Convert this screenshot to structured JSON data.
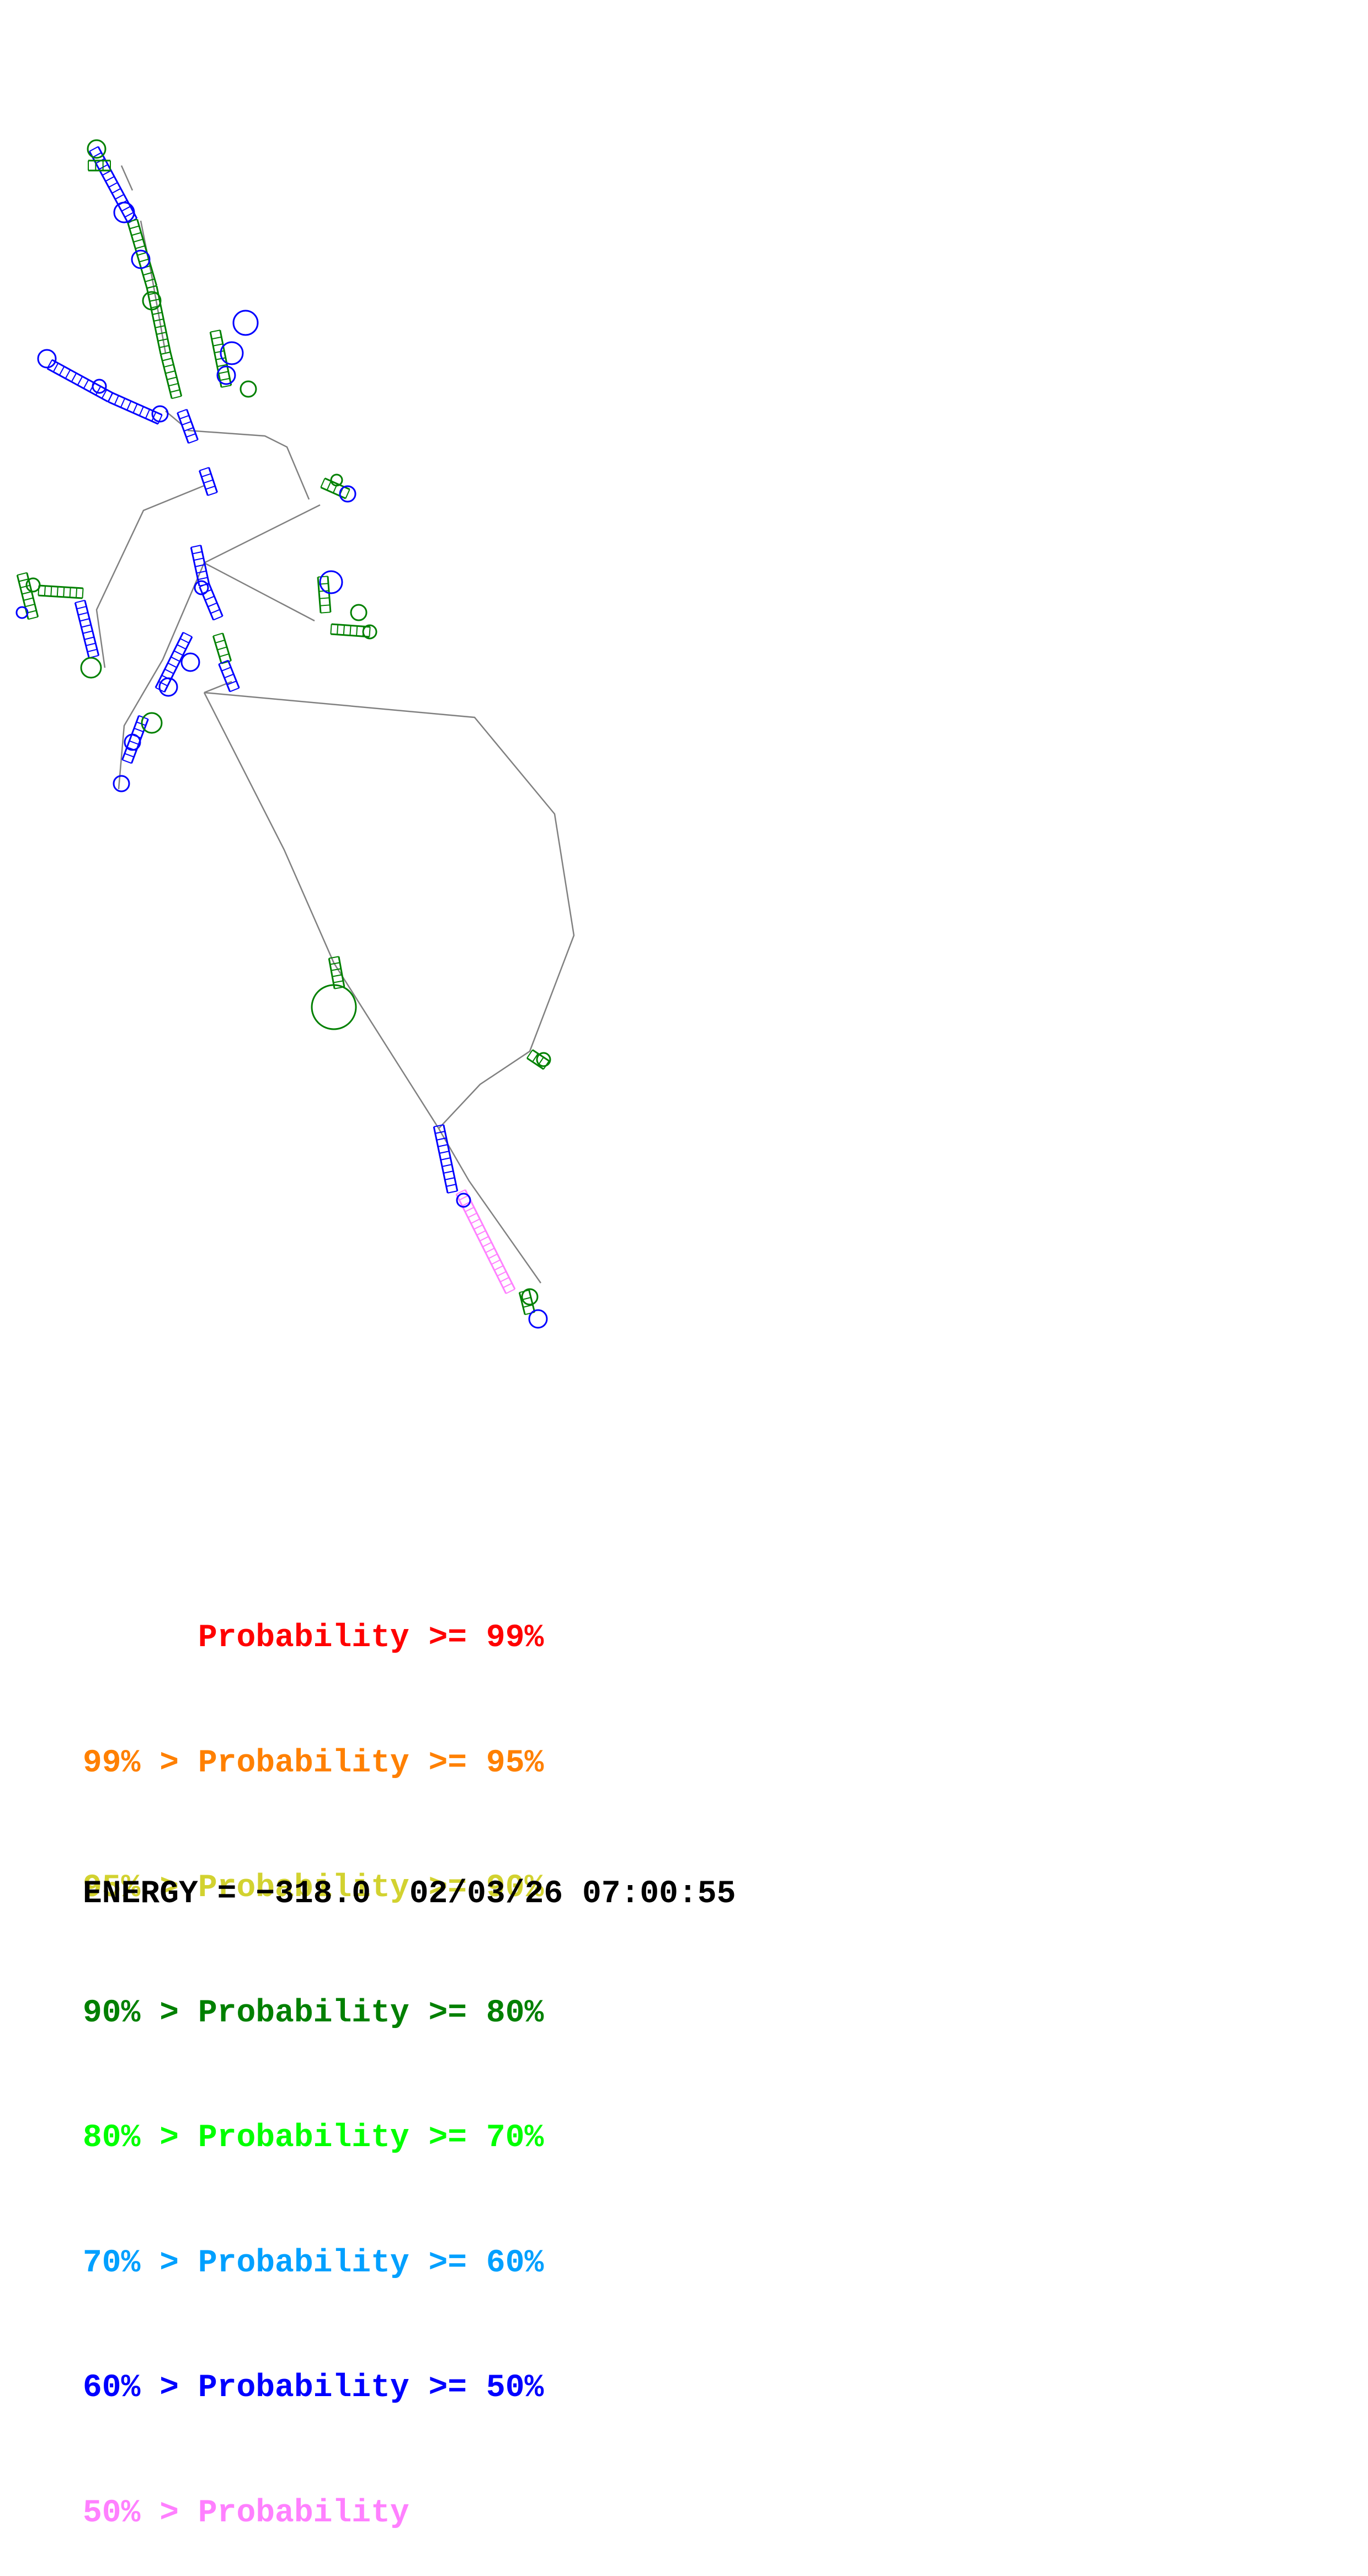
{
  "legend": {
    "rows": [
      {
        "text": "      Probability >= 99%",
        "color": "#ff0000"
      },
      {
        "text": "99% > Probability >= 95%",
        "color": "#ff8000"
      },
      {
        "text": "95% > Probability >= 90%",
        "color": "#d2d230"
      },
      {
        "text": "90% > Probability >= 80%",
        "color": "#008000"
      },
      {
        "text": "80% > Probability >= 70%",
        "color": "#00ff00"
      },
      {
        "text": "70% > Probability >= 60%",
        "color": "#00a0ff"
      },
      {
        "text": "60% > Probability >= 50%",
        "color": "#0000ff"
      },
      {
        "text": "50% > Probability",
        "color": "#ff80ff"
      }
    ]
  },
  "footer": {
    "energy_text": "ENERGY = −318.0  02/03/26 07:00:55"
  },
  "colors": {
    "backbone": "#808080",
    "pair_high": "#008000",
    "pair_mid": "#0000ff",
    "pair_low": "#ff80ff"
  }
}
